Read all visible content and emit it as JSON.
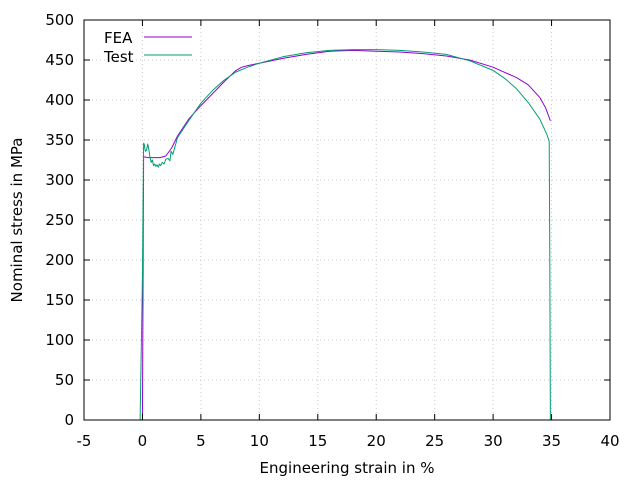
{
  "chart_data": {
    "type": "line",
    "title": "",
    "xlabel": "Engineering strain in %",
    "ylabel": "Nominal stress in MPa",
    "xlim": [
      -5,
      40
    ],
    "ylim": [
      0,
      500
    ],
    "x_ticks": [
      -5,
      0,
      5,
      10,
      15,
      20,
      25,
      30,
      35,
      40
    ],
    "y_ticks": [
      0,
      50,
      100,
      150,
      200,
      250,
      300,
      350,
      400,
      450,
      500
    ],
    "grid": true,
    "legend_position": "top-left",
    "series": [
      {
        "name": "FEA",
        "color": "#9400d3",
        "points": [
          [
            0,
            0
          ],
          [
            0.1,
            329
          ],
          [
            0.5,
            328
          ],
          [
            1.0,
            328
          ],
          [
            1.5,
            328
          ],
          [
            2.0,
            330
          ],
          [
            2.5,
            340
          ],
          [
            3.0,
            355
          ],
          [
            4.0,
            377
          ],
          [
            5.0,
            393
          ],
          [
            6.0,
            408
          ],
          [
            7.0,
            423
          ],
          [
            8.0,
            437
          ],
          [
            8.5,
            441
          ],
          [
            9.0,
            443
          ],
          [
            10.0,
            446
          ],
          [
            12.0,
            452
          ],
          [
            14.0,
            457
          ],
          [
            16.0,
            461
          ],
          [
            18.0,
            462
          ],
          [
            20.0,
            461
          ],
          [
            22.0,
            460
          ],
          [
            24.0,
            458
          ],
          [
            26.0,
            455
          ],
          [
            28.0,
            450
          ],
          [
            30.0,
            441
          ],
          [
            32.0,
            428
          ],
          [
            33.0,
            419
          ],
          [
            34.0,
            403
          ],
          [
            34.5,
            390
          ],
          [
            34.9,
            374
          ]
        ]
      },
      {
        "name": "Test",
        "color": "#009e73",
        "points": [
          [
            -0.2,
            0
          ],
          [
            0.0,
            180
          ],
          [
            0.1,
            346
          ],
          [
            0.15,
            345
          ],
          [
            0.25,
            336
          ],
          [
            0.35,
            337
          ],
          [
            0.45,
            345
          ],
          [
            0.55,
            338
          ],
          [
            0.65,
            328
          ],
          [
            0.75,
            322
          ],
          [
            0.85,
            325
          ],
          [
            0.95,
            318
          ],
          [
            1.05,
            320
          ],
          [
            1.15,
            317
          ],
          [
            1.25,
            319
          ],
          [
            1.35,
            316
          ],
          [
            1.45,
            320
          ],
          [
            1.55,
            318
          ],
          [
            1.7,
            322
          ],
          [
            1.85,
            320
          ],
          [
            2.0,
            326
          ],
          [
            2.2,
            327
          ],
          [
            2.35,
            324
          ],
          [
            2.45,
            336
          ],
          [
            2.6,
            332
          ],
          [
            3.0,
            353
          ],
          [
            4.0,
            375
          ],
          [
            5.0,
            396
          ],
          [
            6.0,
            412
          ],
          [
            7.0,
            425
          ],
          [
            8.0,
            435
          ],
          [
            9.0,
            441
          ],
          [
            10.0,
            446
          ],
          [
            12.0,
            454
          ],
          [
            14.0,
            459
          ],
          [
            16.0,
            462
          ],
          [
            18.0,
            463
          ],
          [
            20.0,
            463
          ],
          [
            22.0,
            462
          ],
          [
            24.0,
            460
          ],
          [
            26.0,
            457
          ],
          [
            28.0,
            449
          ],
          [
            30.0,
            437
          ],
          [
            31.0,
            427
          ],
          [
            32.0,
            414
          ],
          [
            33.0,
            397
          ],
          [
            34.0,
            376
          ],
          [
            34.6,
            357
          ],
          [
            34.8,
            348
          ],
          [
            34.85,
            200
          ],
          [
            34.9,
            0
          ]
        ]
      }
    ]
  }
}
